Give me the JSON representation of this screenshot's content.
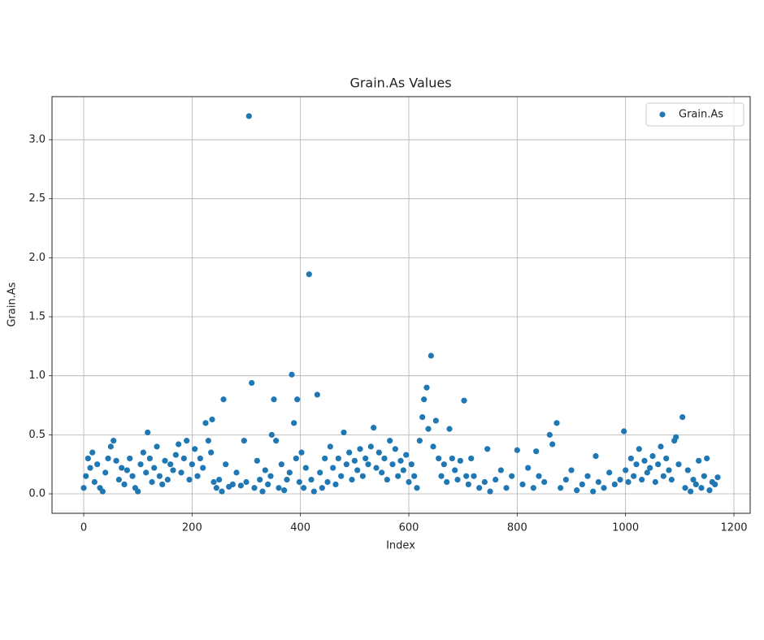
{
  "chart_data": {
    "type": "scatter",
    "title": "Grain.As Values",
    "x_label": "Index",
    "y_label": "Grain.As",
    "xlim": [
      -58.5,
      1230
    ],
    "ylim": [
      -0.165,
      3.365
    ],
    "xticks": [
      0,
      200,
      400,
      600,
      800,
      1000,
      1200
    ],
    "yticks": [
      {
        "value": 0,
        "label": "0.0"
      },
      0.5,
      {
        "value": 1,
        "label": "1.0"
      },
      1.5,
      {
        "value": 2,
        "label": "2.0"
      },
      2.5,
      {
        "value": 3,
        "label": "3.0"
      }
    ],
    "grid": true,
    "legend": "upper right",
    "series": [
      {
        "name": "Grain.As",
        "color": "#1f77b4",
        "x": [
          0,
          4,
          8,
          12,
          16,
          20,
          25,
          30,
          35,
          40,
          45,
          50,
          55,
          60,
          65,
          70,
          75,
          80,
          85,
          90,
          95,
          100,
          105,
          110,
          115,
          118,
          122,
          126,
          130,
          135,
          140,
          145,
          150,
          155,
          160,
          165,
          170,
          175,
          180,
          185,
          190,
          195,
          200,
          205,
          210,
          215,
          220,
          225,
          230,
          235,
          237,
          240,
          245,
          250,
          255,
          258,
          262,
          268,
          275,
          282,
          290,
          296,
          300,
          305,
          310,
          315,
          320,
          325,
          330,
          335,
          340,
          345,
          347,
          351,
          355,
          360,
          365,
          370,
          375,
          380,
          384,
          388,
          392,
          394,
          398,
          402,
          406,
          410,
          416,
          420,
          425,
          431,
          436,
          440,
          445,
          450,
          455,
          460,
          465,
          470,
          475,
          480,
          485,
          490,
          495,
          500,
          505,
          510,
          515,
          520,
          525,
          530,
          535,
          540,
          545,
          550,
          555,
          560,
          565,
          570,
          575,
          580,
          585,
          590,
          595,
          600,
          605,
          610,
          615,
          620,
          625,
          628,
          633,
          636,
          641,
          645,
          650,
          655,
          660,
          665,
          670,
          675,
          680,
          685,
          690,
          695,
          702,
          706,
          710,
          715,
          720,
          730,
          740,
          745,
          750,
          760,
          770,
          780,
          790,
          800,
          810,
          820,
          830,
          835,
          840,
          850,
          860,
          865,
          873,
          880,
          890,
          900,
          910,
          920,
          930,
          940,
          945,
          950,
          960,
          970,
          980,
          990,
          997,
          1000,
          1005,
          1010,
          1015,
          1020,
          1025,
          1030,
          1035,
          1040,
          1045,
          1050,
          1055,
          1060,
          1065,
          1070,
          1075,
          1080,
          1085,
          1090,
          1093,
          1098,
          1105,
          1110,
          1115,
          1120,
          1125,
          1130,
          1135,
          1140,
          1145,
          1150,
          1155,
          1160,
          1165,
          1170
        ],
        "values": [
          0.05,
          0.15,
          0.3,
          0.22,
          0.35,
          0.1,
          0.25,
          0.05,
          0.02,
          0.18,
          0.3,
          0.4,
          0.45,
          0.28,
          0.12,
          0.22,
          0.08,
          0.2,
          0.3,
          0.15,
          0.05,
          0.02,
          0.25,
          0.35,
          0.18,
          0.52,
          0.3,
          0.1,
          0.22,
          0.4,
          0.15,
          0.08,
          0.28,
          0.12,
          0.25,
          0.2,
          0.33,
          0.42,
          0.18,
          0.3,
          0.45,
          0.12,
          0.25,
          0.38,
          0.15,
          0.3,
          0.22,
          0.6,
          0.45,
          0.35,
          0.63,
          0.1,
          0.05,
          0.12,
          0.02,
          0.8,
          0.25,
          0.06,
          0.08,
          0.18,
          0.07,
          0.45,
          0.1,
          3.2,
          0.94,
          0.05,
          0.28,
          0.12,
          0.02,
          0.2,
          0.08,
          0.15,
          0.5,
          0.8,
          0.45,
          0.05,
          0.25,
          0.03,
          0.12,
          0.18,
          1.01,
          0.6,
          0.3,
          0.8,
          0.1,
          0.35,
          0.05,
          0.22,
          1.86,
          0.12,
          0.02,
          0.84,
          0.18,
          0.05,
          0.3,
          0.1,
          0.4,
          0.22,
          0.08,
          0.3,
          0.15,
          0.52,
          0.25,
          0.35,
          0.12,
          0.28,
          0.2,
          0.38,
          0.15,
          0.3,
          0.25,
          0.4,
          0.56,
          0.22,
          0.35,
          0.18,
          0.3,
          0.12,
          0.45,
          0.25,
          0.38,
          0.15,
          0.28,
          0.2,
          0.33,
          0.1,
          0.25,
          0.15,
          0.05,
          0.45,
          0.65,
          0.8,
          0.9,
          0.55,
          1.17,
          0.4,
          0.62,
          0.3,
          0.15,
          0.25,
          0.1,
          0.55,
          0.3,
          0.2,
          0.12,
          0.28,
          0.79,
          0.15,
          0.08,
          0.3,
          0.15,
          0.05,
          0.1,
          0.38,
          0.02,
          0.12,
          0.2,
          0.05,
          0.15,
          0.37,
          0.08,
          0.22,
          0.05,
          0.36,
          0.15,
          0.1,
          0.5,
          0.42,
          0.6,
          0.05,
          0.12,
          0.2,
          0.03,
          0.08,
          0.15,
          0.02,
          0.32,
          0.1,
          0.05,
          0.18,
          0.08,
          0.12,
          0.53,
          0.2,
          0.1,
          0.3,
          0.15,
          0.25,
          0.38,
          0.12,
          0.28,
          0.18,
          0.22,
          0.32,
          0.1,
          0.25,
          0.4,
          0.15,
          0.3,
          0.2,
          0.12,
          0.45,
          0.48,
          0.25,
          0.65,
          0.05,
          0.2,
          0.02,
          0.12,
          0.08,
          0.28,
          0.05,
          0.15,
          0.3,
          0.03,
          0.1,
          0.08,
          0.14
        ]
      }
    ]
  }
}
